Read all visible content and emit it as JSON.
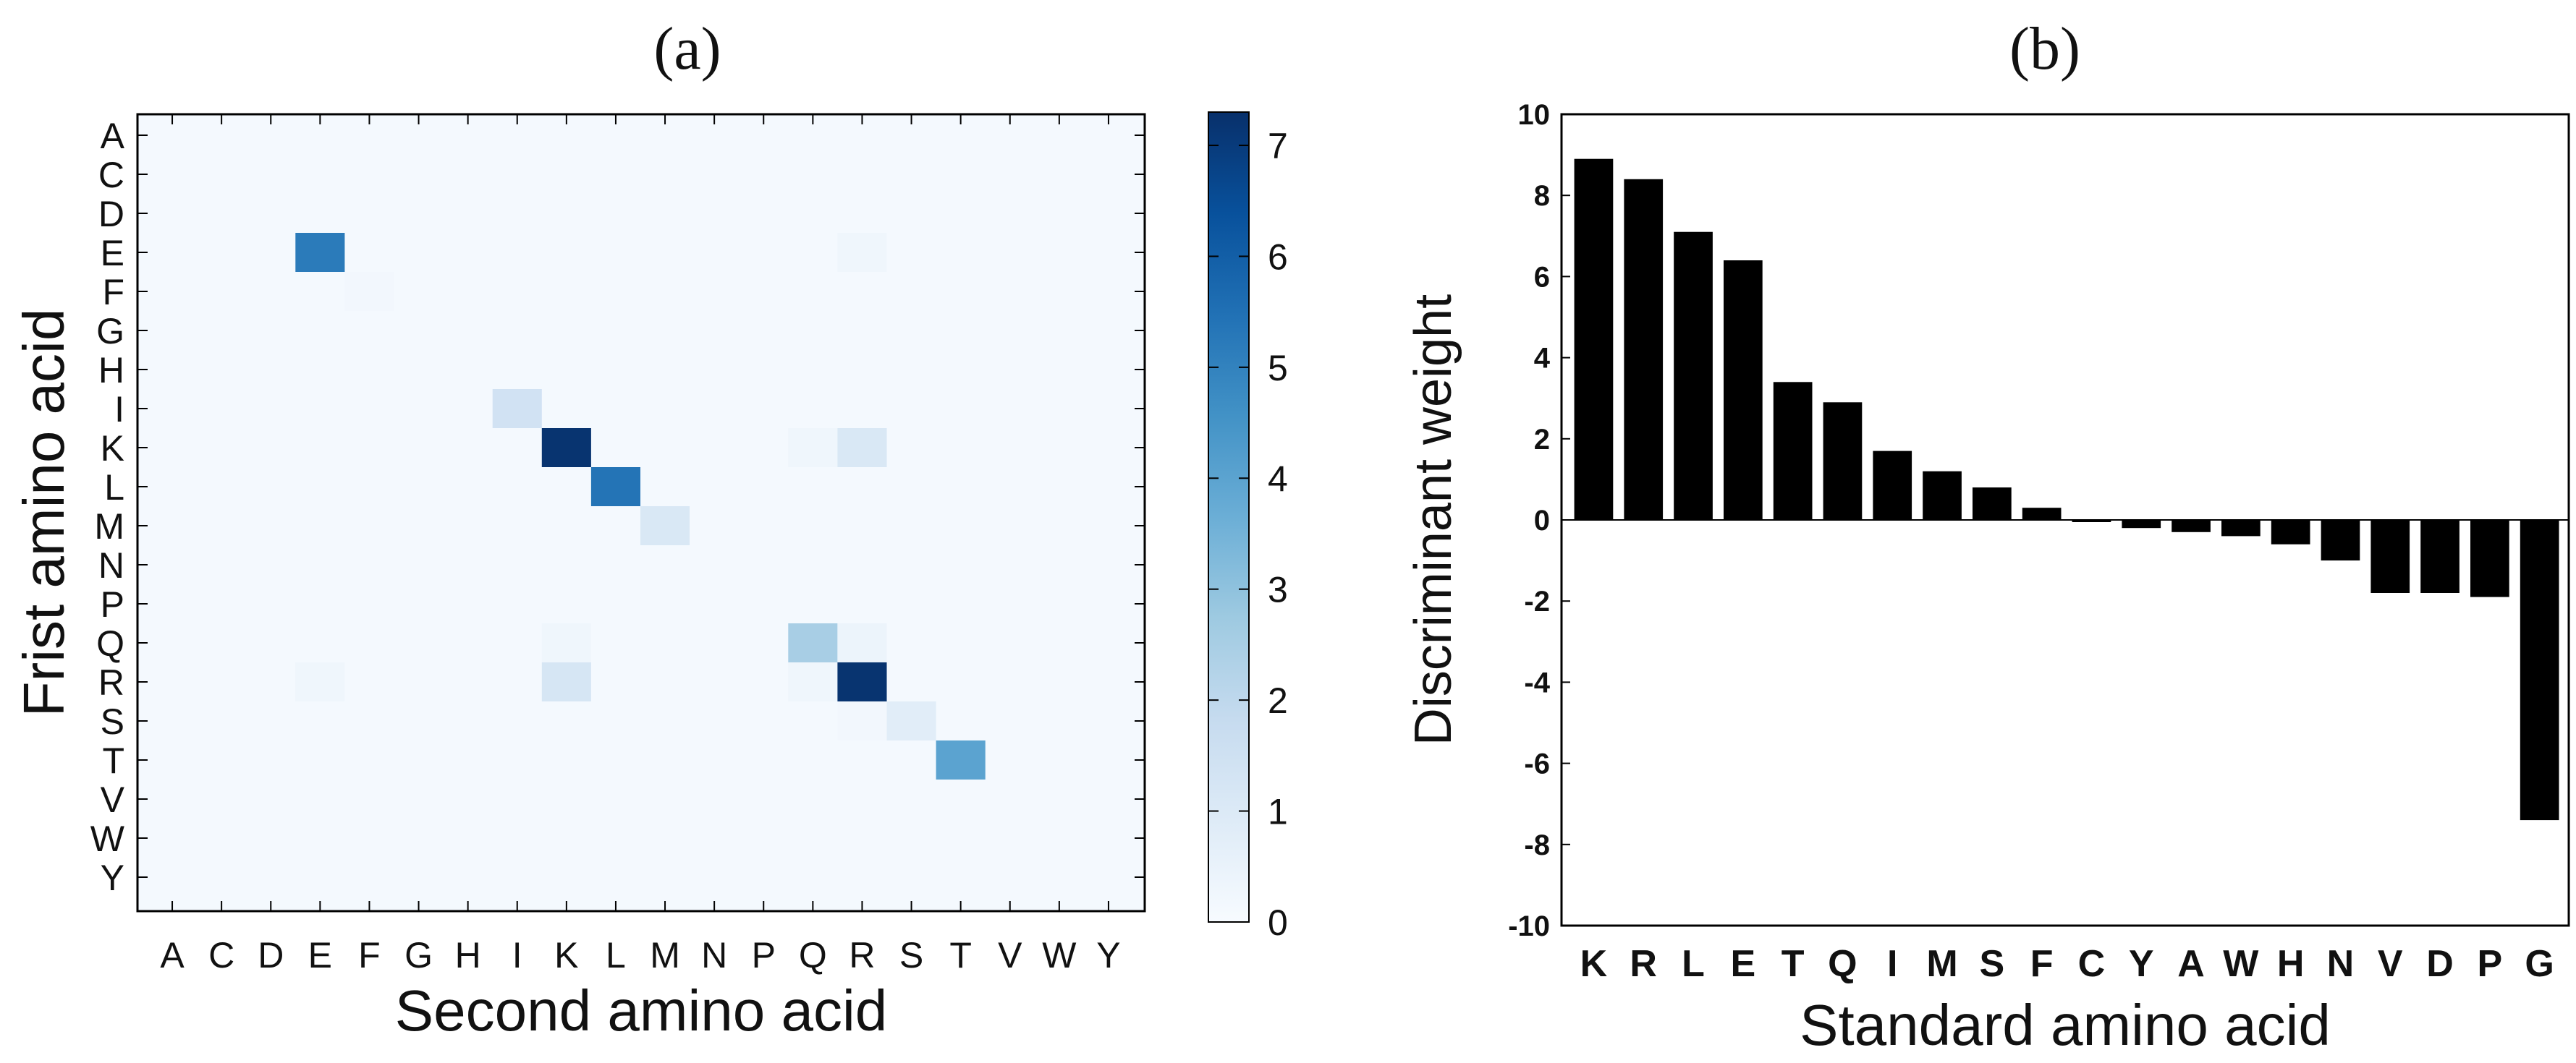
{
  "panels": {
    "a_label": "(a)",
    "b_label": "(b)"
  },
  "colorbar": {
    "ticks": [
      "0",
      "1",
      "2",
      "3",
      "4",
      "5",
      "6",
      "7"
    ],
    "range": [
      0,
      7.3
    ],
    "colors": [
      "#f7fbff",
      "#08306b"
    ]
  },
  "chart_data": [
    {
      "type": "heatmap",
      "title": "",
      "xlabel": "Second amino acid",
      "ylabel": "Frist amino acid",
      "x_categories": [
        "A",
        "C",
        "D",
        "E",
        "F",
        "G",
        "H",
        "I",
        "K",
        "L",
        "M",
        "N",
        "P",
        "Q",
        "R",
        "S",
        "T",
        "V",
        "W",
        "Y"
      ],
      "y_categories": [
        "A",
        "C",
        "D",
        "E",
        "F",
        "G",
        "H",
        "I",
        "K",
        "L",
        "M",
        "N",
        "P",
        "Q",
        "R",
        "S",
        "T",
        "V",
        "W",
        "Y"
      ],
      "baseline_value": 0.1,
      "colormap": "Blues",
      "vmin": 0,
      "vmax": 7.3,
      "cells": [
        {
          "row": "E",
          "col": "E",
          "value": 5.2
        },
        {
          "row": "E",
          "col": "R",
          "value": 0.3
        },
        {
          "row": "F",
          "col": "F",
          "value": 0.2
        },
        {
          "row": "I",
          "col": "I",
          "value": 1.4
        },
        {
          "row": "K",
          "col": "K",
          "value": 7.2
        },
        {
          "row": "K",
          "col": "Q",
          "value": 0.3
        },
        {
          "row": "K",
          "col": "R",
          "value": 1.1
        },
        {
          "row": "L",
          "col": "L",
          "value": 5.4
        },
        {
          "row": "M",
          "col": "M",
          "value": 1.1
        },
        {
          "row": "Q",
          "col": "K",
          "value": 0.3
        },
        {
          "row": "Q",
          "col": "Q",
          "value": 2.5
        },
        {
          "row": "Q",
          "col": "R",
          "value": 0.4
        },
        {
          "row": "R",
          "col": "E",
          "value": 0.3
        },
        {
          "row": "R",
          "col": "K",
          "value": 1.2
        },
        {
          "row": "R",
          "col": "Q",
          "value": 0.3
        },
        {
          "row": "R",
          "col": "R",
          "value": 7.2
        },
        {
          "row": "S",
          "col": "R",
          "value": 0.2
        },
        {
          "row": "S",
          "col": "S",
          "value": 0.8
        },
        {
          "row": "T",
          "col": "T",
          "value": 4.0
        }
      ]
    },
    {
      "type": "bar",
      "title": "",
      "xlabel": "Standard amino acid",
      "ylabel": "Discriminant weight",
      "categories": [
        "K",
        "R",
        "L",
        "E",
        "T",
        "Q",
        "I",
        "M",
        "S",
        "F",
        "C",
        "Y",
        "A",
        "W",
        "H",
        "N",
        "V",
        "D",
        "P",
        "G"
      ],
      "values": [
        8.9,
        8.4,
        7.1,
        6.4,
        3.4,
        2.9,
        1.7,
        1.2,
        0.8,
        0.3,
        -0.05,
        -0.2,
        -0.3,
        -0.4,
        -0.6,
        -1.0,
        -1.8,
        -1.8,
        -1.9,
        -7.4
      ],
      "ylim": [
        -10,
        10
      ],
      "yticks": [
        "-10",
        "-8",
        "-6",
        "-4",
        "-2",
        "0",
        "2",
        "4",
        "6",
        "8",
        "10"
      ],
      "bar_color": "#000000"
    }
  ]
}
